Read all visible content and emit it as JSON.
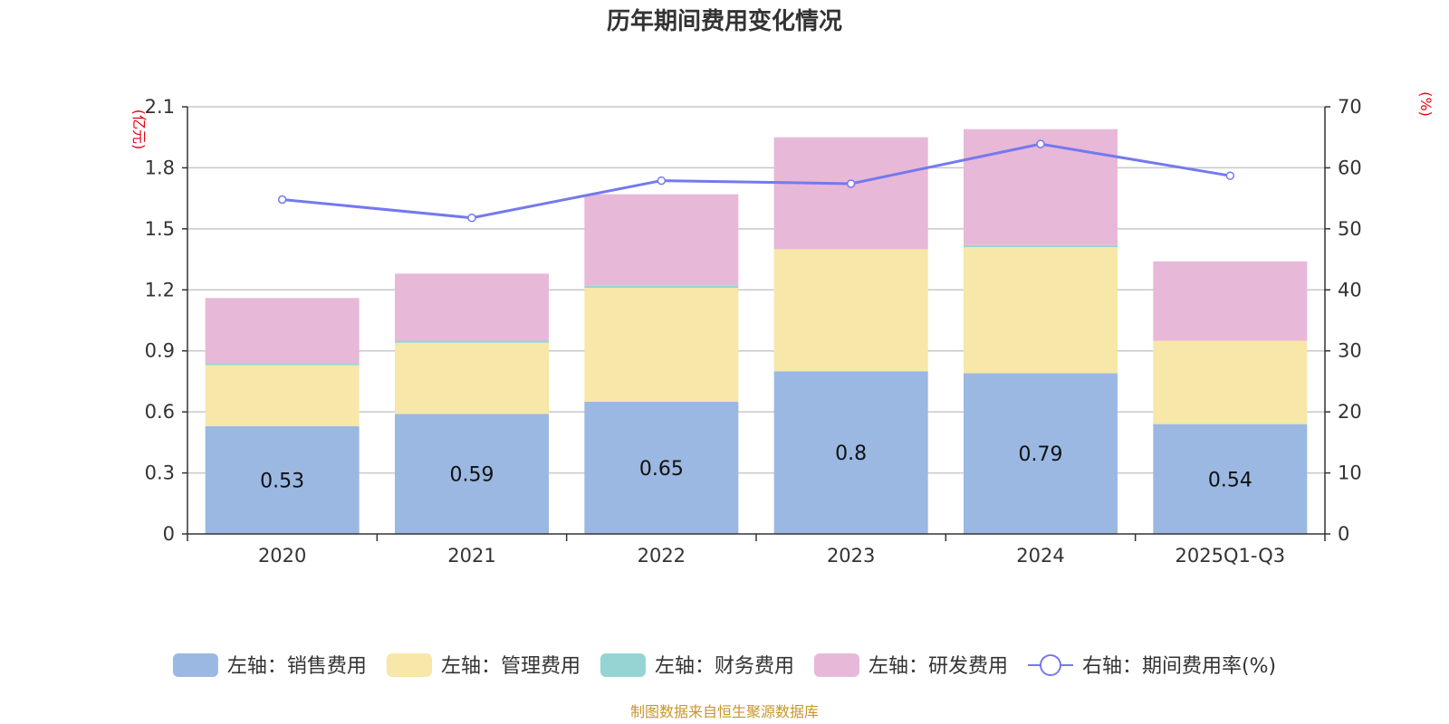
{
  "chart_data": {
    "type": "bar",
    "stacked": true,
    "title": "历年期间费用变化情况",
    "categories": [
      "2020",
      "2021",
      "2022",
      "2023",
      "2024",
      "2025Q1-Q3"
    ],
    "left_axis": {
      "unit": "(亿元)",
      "ylim": [
        0,
        2.1
      ],
      "ticks": [
        "0",
        "0.3",
        "0.6",
        "0.9",
        "1.2",
        "1.5",
        "1.8",
        "2.1"
      ]
    },
    "right_axis": {
      "unit": "(%)",
      "ylim": [
        0,
        70
      ],
      "ticks": [
        "0",
        "10",
        "20",
        "30",
        "40",
        "50",
        "60",
        "70"
      ]
    },
    "grid": true,
    "legend_position": "bottom",
    "series": [
      {
        "name": "左轴：销售费用",
        "axis": "left",
        "kind": "bar",
        "color": "#9bb8e2",
        "values": [
          0.53,
          0.59,
          0.65,
          0.8,
          0.79,
          0.54
        ],
        "labels": [
          "0.53",
          "0.59",
          "0.65",
          "0.8",
          "0.79",
          "0.54"
        ]
      },
      {
        "name": "左轴：管理费用",
        "axis": "left",
        "kind": "bar",
        "color": "#f7e7a8",
        "values": [
          0.3,
          0.35,
          0.56,
          0.6,
          0.62,
          0.41
        ]
      },
      {
        "name": "左轴：财务费用",
        "axis": "left",
        "kind": "bar",
        "color": "#96d4d4",
        "values": [
          0.01,
          0.01,
          0.01,
          0.0,
          0.01,
          0.0
        ]
      },
      {
        "name": "左轴：研发费用",
        "axis": "left",
        "kind": "bar",
        "color": "#e8b8d8",
        "values": [
          0.32,
          0.33,
          0.45,
          0.55,
          0.57,
          0.39
        ]
      },
      {
        "name": "右轴：期间费用率(%)",
        "axis": "right",
        "kind": "line",
        "color": "#7479ee",
        "values": [
          54.8,
          51.8,
          57.9,
          57.4,
          63.9,
          58.7
        ]
      }
    ]
  },
  "source_text": "制图数据来自恒生聚源数据库",
  "colors": {
    "source": "#c8962a",
    "axis_unit": "#e60012",
    "grid": "#c8c8c8",
    "axis": "#333333"
  }
}
